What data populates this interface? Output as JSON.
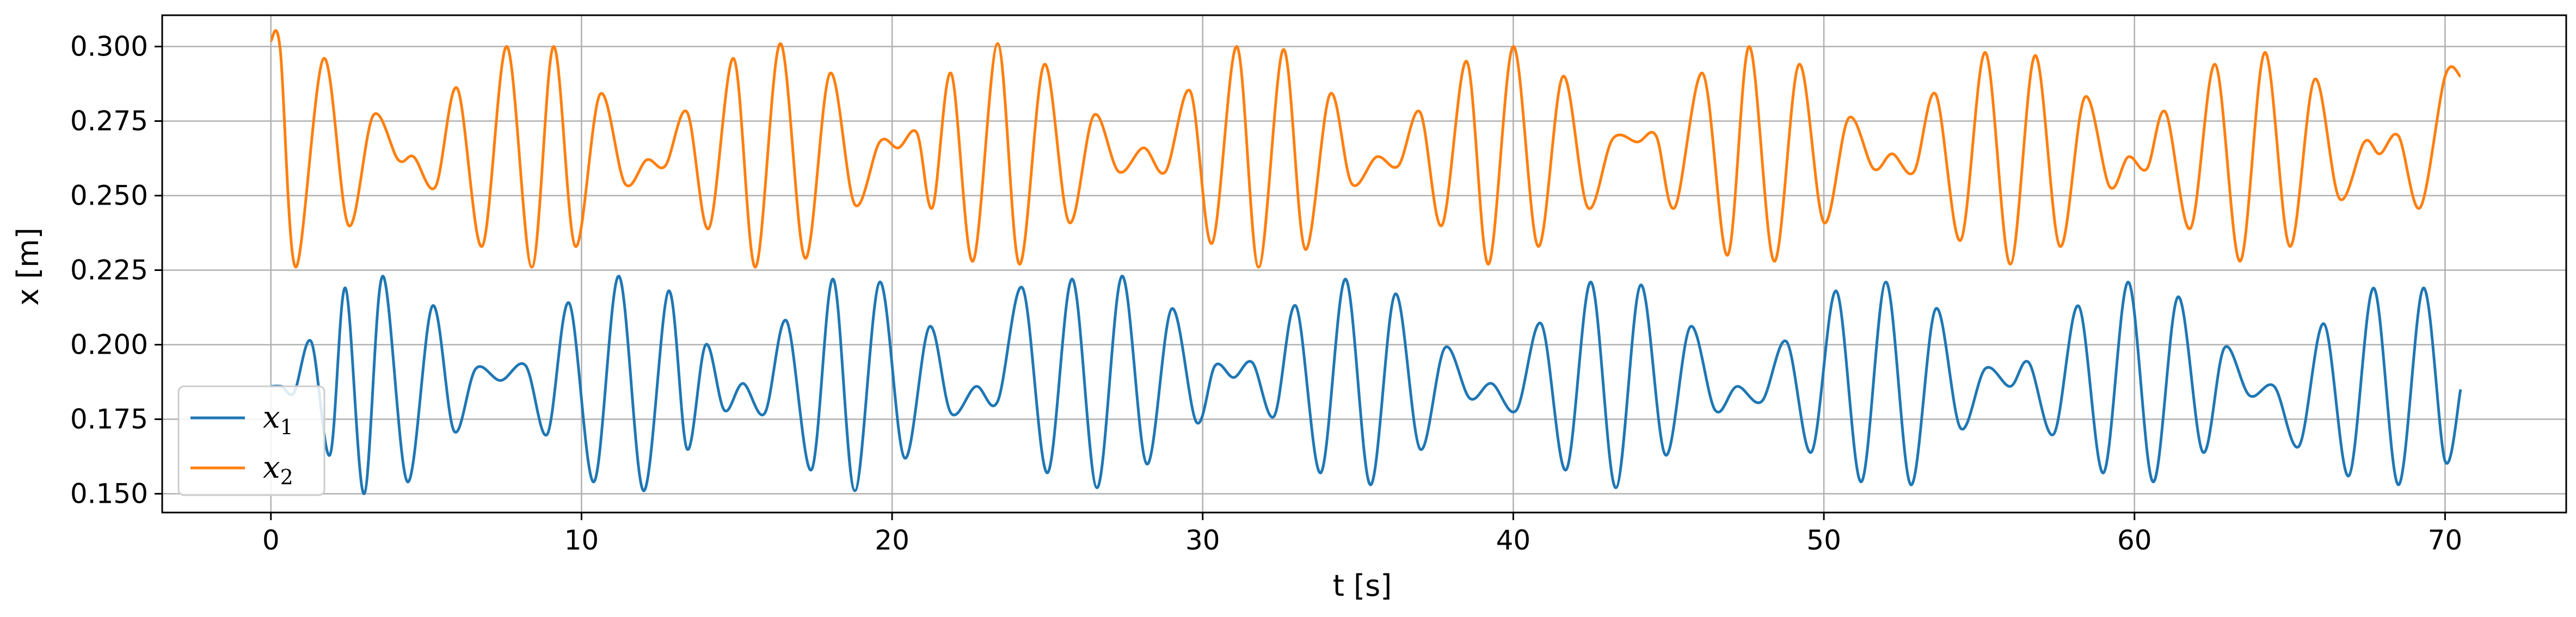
{
  "chart_data": {
    "type": "line",
    "title": "",
    "xlabel": "t [s]",
    "ylabel": "x [m]",
    "xlim": [
      -3.5,
      73.9
    ],
    "ylim": [
      0.1437,
      0.3105
    ],
    "xticks": [
      0,
      10,
      20,
      30,
      40,
      50,
      60,
      70
    ],
    "yticks": [
      0.15,
      0.175,
      0.2,
      0.225,
      0.25,
      0.275,
      0.3
    ],
    "xtick_labels": [
      "0",
      "10",
      "20",
      "30",
      "40",
      "50",
      "60",
      "70"
    ],
    "ytick_labels": [
      "0.150",
      "0.175",
      "0.200",
      "0.225",
      "0.250",
      "0.275",
      "0.300"
    ],
    "grid": true,
    "legend_position": "lower-left",
    "series": [
      {
        "name": "x1",
        "name_base": "x",
        "name_sub": "1",
        "color": "#1f77b4",
        "x": [
          0.0,
          0.35,
          0.75,
          1.3,
          1.9,
          2.4,
          3.0,
          3.6,
          4.4,
          5.2,
          5.9,
          6.6,
          7.4,
          8.2,
          8.9,
          9.6,
          10.4,
          11.2,
          12.0,
          12.8,
          13.4,
          14.0,
          14.6,
          15.2,
          15.9,
          16.6,
          17.4,
          18.1,
          18.8,
          19.6,
          20.4,
          21.2,
          21.9,
          22.7,
          23.4,
          24.2,
          25.0,
          25.8,
          26.6,
          27.4,
          28.2,
          29.0,
          29.8,
          30.4,
          31.0,
          31.6,
          32.3,
          33.0,
          33.8,
          34.6,
          35.4,
          36.2,
          37.0,
          37.8,
          38.6,
          39.3,
          40.1,
          40.9,
          41.7,
          42.5,
          43.3,
          44.1,
          44.9,
          45.7,
          46.5,
          47.2,
          48.0,
          48.8,
          49.6,
          50.4,
          51.2,
          52.0,
          52.8,
          53.6,
          54.4,
          55.2,
          56.0,
          56.6,
          57.4,
          58.2,
          59.0,
          59.8,
          60.6,
          61.4,
          62.2,
          62.9,
          63.7,
          64.5,
          65.3,
          66.1,
          66.9,
          67.7,
          68.5,
          69.3,
          70.0,
          70.5
        ],
        "y": [
          0.186,
          0.186,
          0.184,
          0.201,
          0.163,
          0.219,
          0.15,
          0.223,
          0.154,
          0.213,
          0.171,
          0.192,
          0.188,
          0.193,
          0.17,
          0.214,
          0.154,
          0.223,
          0.151,
          0.218,
          0.165,
          0.2,
          0.178,
          0.187,
          0.177,
          0.208,
          0.158,
          0.222,
          0.151,
          0.221,
          0.162,
          0.206,
          0.177,
          0.186,
          0.181,
          0.219,
          0.157,
          0.222,
          0.152,
          0.223,
          0.16,
          0.212,
          0.174,
          0.193,
          0.189,
          0.194,
          0.176,
          0.213,
          0.157,
          0.222,
          0.153,
          0.217,
          0.165,
          0.199,
          0.182,
          0.187,
          0.178,
          0.207,
          0.158,
          0.221,
          0.152,
          0.22,
          0.163,
          0.206,
          0.178,
          0.186,
          0.181,
          0.201,
          0.164,
          0.218,
          0.154,
          0.221,
          0.153,
          0.212,
          0.172,
          0.192,
          0.186,
          0.194,
          0.17,
          0.213,
          0.157,
          0.221,
          0.154,
          0.216,
          0.164,
          0.199,
          0.183,
          0.186,
          0.166,
          0.207,
          0.156,
          0.219,
          0.153,
          0.219,
          0.161,
          0.185
        ]
      },
      {
        "name": "x2",
        "name_base": "x",
        "name_sub": "2",
        "color": "#ff7f0e",
        "x": [
          0.0,
          0.3,
          0.8,
          1.7,
          2.5,
          3.3,
          4.1,
          4.6,
          5.3,
          6.0,
          6.8,
          7.6,
          8.4,
          9.1,
          9.8,
          10.6,
          11.4,
          12.1,
          12.7,
          13.4,
          14.1,
          14.9,
          15.6,
          16.4,
          17.2,
          18.0,
          18.8,
          19.6,
          20.2,
          20.8,
          21.3,
          21.9,
          22.6,
          23.4,
          24.1,
          24.9,
          25.7,
          26.5,
          27.3,
          28.1,
          28.8,
          29.6,
          30.3,
          31.1,
          31.8,
          32.6,
          33.3,
          34.1,
          34.8,
          35.6,
          36.3,
          37.0,
          37.7,
          38.5,
          39.2,
          40.0,
          40.8,
          41.6,
          42.4,
          43.2,
          44.0,
          44.6,
          45.2,
          46.1,
          46.9,
          47.6,
          48.4,
          49.2,
          50.0,
          50.8,
          51.6,
          52.2,
          52.9,
          53.6,
          54.4,
          55.2,
          56.0,
          56.8,
          57.6,
          58.4,
          59.2,
          59.8,
          60.4,
          61.0,
          61.8,
          62.6,
          63.4,
          64.2,
          65.0,
          65.8,
          66.6,
          67.4,
          67.9,
          68.5,
          69.2,
          70.0,
          70.5
        ],
        "y": [
          0.302,
          0.299,
          0.226,
          0.296,
          0.24,
          0.277,
          0.262,
          0.263,
          0.253,
          0.286,
          0.233,
          0.3,
          0.226,
          0.3,
          0.233,
          0.284,
          0.254,
          0.262,
          0.26,
          0.278,
          0.239,
          0.296,
          0.226,
          0.301,
          0.229,
          0.291,
          0.247,
          0.268,
          0.266,
          0.271,
          0.246,
          0.291,
          0.228,
          0.301,
          0.227,
          0.294,
          0.241,
          0.277,
          0.258,
          0.266,
          0.258,
          0.285,
          0.234,
          0.3,
          0.226,
          0.299,
          0.232,
          0.284,
          0.254,
          0.263,
          0.26,
          0.278,
          0.24,
          0.295,
          0.227,
          0.3,
          0.233,
          0.29,
          0.246,
          0.269,
          0.268,
          0.27,
          0.246,
          0.291,
          0.23,
          0.3,
          0.228,
          0.294,
          0.241,
          0.276,
          0.259,
          0.264,
          0.258,
          0.284,
          0.235,
          0.298,
          0.227,
          0.297,
          0.233,
          0.283,
          0.253,
          0.263,
          0.259,
          0.278,
          0.239,
          0.294,
          0.228,
          0.298,
          0.233,
          0.289,
          0.249,
          0.268,
          0.264,
          0.27,
          0.246,
          0.29,
          0.29
        ]
      }
    ]
  }
}
